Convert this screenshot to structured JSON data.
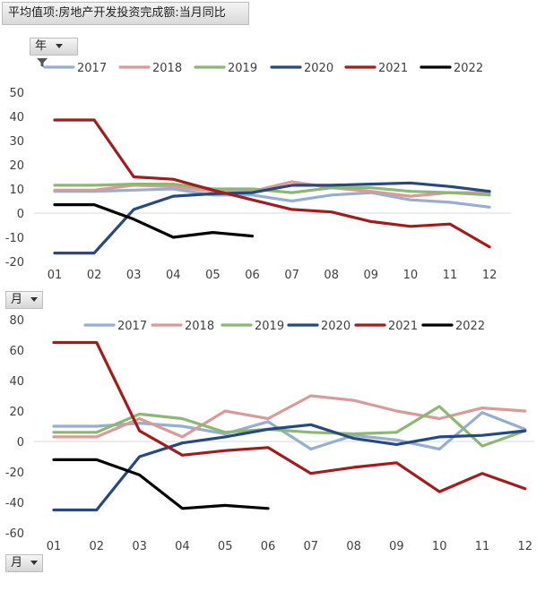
{
  "field_title": "平均值项:房地产开发投资完成额:当月同比",
  "filters": {
    "year_label": "年",
    "month_label_top": "月",
    "month_label_bottom": "月"
  },
  "chart_data": [
    {
      "type": "line",
      "title": "",
      "categories": [
        "01",
        "02",
        "03",
        "04",
        "05",
        "06",
        "07",
        "08",
        "09",
        "10",
        "11",
        "12"
      ],
      "ylim": [
        -20,
        50
      ],
      "yticks": [
        -20,
        -10,
        0,
        10,
        20,
        30,
        40,
        50
      ],
      "legend_position": "top",
      "series": [
        {
          "name": "2017",
          "color": "#97aed0",
          "values": [
            9,
            9,
            9.5,
            10,
            7.5,
            7.5,
            5,
            7.5,
            8.5,
            5.5,
            4.5,
            2.5
          ]
        },
        {
          "name": "2018",
          "color": "#d99a9a",
          "values": [
            9.5,
            9.5,
            11.5,
            11,
            9,
            9,
            13,
            10.5,
            9,
            7,
            8.5,
            8.5
          ]
        },
        {
          "name": "2019",
          "color": "#8cb873",
          "values": [
            11.5,
            11.5,
            12,
            12,
            10,
            10,
            8.5,
            10.5,
            10.5,
            9,
            8.5,
            7.5
          ]
        },
        {
          "name": "2020",
          "color": "#264a80",
          "values": [
            -16.5,
            -16.5,
            1.5,
            7,
            8,
            8.5,
            11.5,
            11.5,
            12,
            12.5,
            11,
            9
          ]
        },
        {
          "name": "2021",
          "color": "#a21c1c",
          "values": [
            38.5,
            38.5,
            15,
            14,
            9.5,
            5.5,
            1.5,
            0.5,
            -3.5,
            -5.5,
            -4.5,
            -14
          ]
        },
        {
          "name": "2022",
          "color": "#000000",
          "values": [
            3.5,
            3.5,
            -2.5,
            -10,
            -8,
            -9.5,
            null,
            null,
            null,
            null,
            null,
            null
          ]
        }
      ]
    },
    {
      "type": "line",
      "title": "",
      "categories": [
        "01",
        "02",
        "03",
        "04",
        "05",
        "06",
        "07",
        "08",
        "09",
        "10",
        "11",
        "12"
      ],
      "ylim": [
        -60,
        80
      ],
      "yticks": [
        -60,
        -40,
        -20,
        0,
        20,
        40,
        60,
        80
      ],
      "legend_position": "top",
      "series": [
        {
          "name": "2017",
          "color": "#97aed0",
          "values": [
            10,
            10,
            12,
            10,
            5,
            13,
            -5,
            4,
            1,
            -5,
            19,
            8
          ]
        },
        {
          "name": "2018",
          "color": "#d99a9a",
          "values": [
            3,
            3,
            15,
            3,
            20,
            15,
            30,
            27,
            20,
            15,
            22,
            20
          ]
        },
        {
          "name": "2019",
          "color": "#8cb873",
          "values": [
            6,
            6,
            18,
            15,
            6,
            8,
            6,
            5,
            6,
            23,
            -3,
            7
          ]
        },
        {
          "name": "2020",
          "color": "#264a80",
          "values": [
            -45,
            -45,
            -10,
            -1,
            3,
            8,
            11,
            2,
            -2,
            3,
            4,
            7
          ]
        },
        {
          "name": "2021",
          "color": "#a21c1c",
          "values": [
            65,
            65,
            7,
            -9,
            -6,
            -4,
            -21,
            -17,
            -14,
            -33,
            -21,
            -31
          ]
        },
        {
          "name": "2022",
          "color": "#000000",
          "values": [
            -12,
            -12,
            -22,
            -44,
            -42,
            -44,
            null,
            null,
            null,
            null,
            null,
            null
          ]
        }
      ]
    }
  ]
}
